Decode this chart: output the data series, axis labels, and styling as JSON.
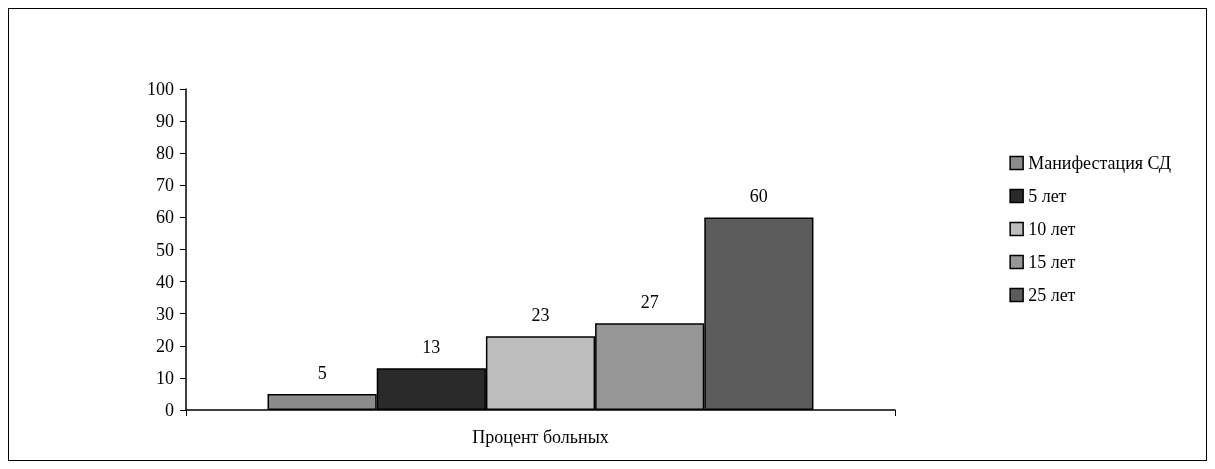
{
  "chart_data": {
    "type": "bar",
    "categories": [
      "Процент больных"
    ],
    "series": [
      {
        "name": "Манифестация СД",
        "color": "#8c8c8c",
        "values": [
          5
        ]
      },
      {
        "name": "5 лет",
        "color": "#2a2a2a",
        "values": [
          13
        ]
      },
      {
        "name": "10 лет",
        "color": "#bdbdbd",
        "values": [
          23
        ]
      },
      {
        "name": "15 лет",
        "color": "#969696",
        "values": [
          27
        ]
      },
      {
        "name": "25 лет",
        "color": "#5c5c5c",
        "values": [
          60
        ]
      }
    ],
    "ylim": [
      0,
      100
    ],
    "yticks": [
      0,
      10,
      20,
      30,
      40,
      50,
      60,
      70,
      80,
      90,
      100
    ],
    "data_labels": true,
    "legend": "right",
    "grid": false
  }
}
